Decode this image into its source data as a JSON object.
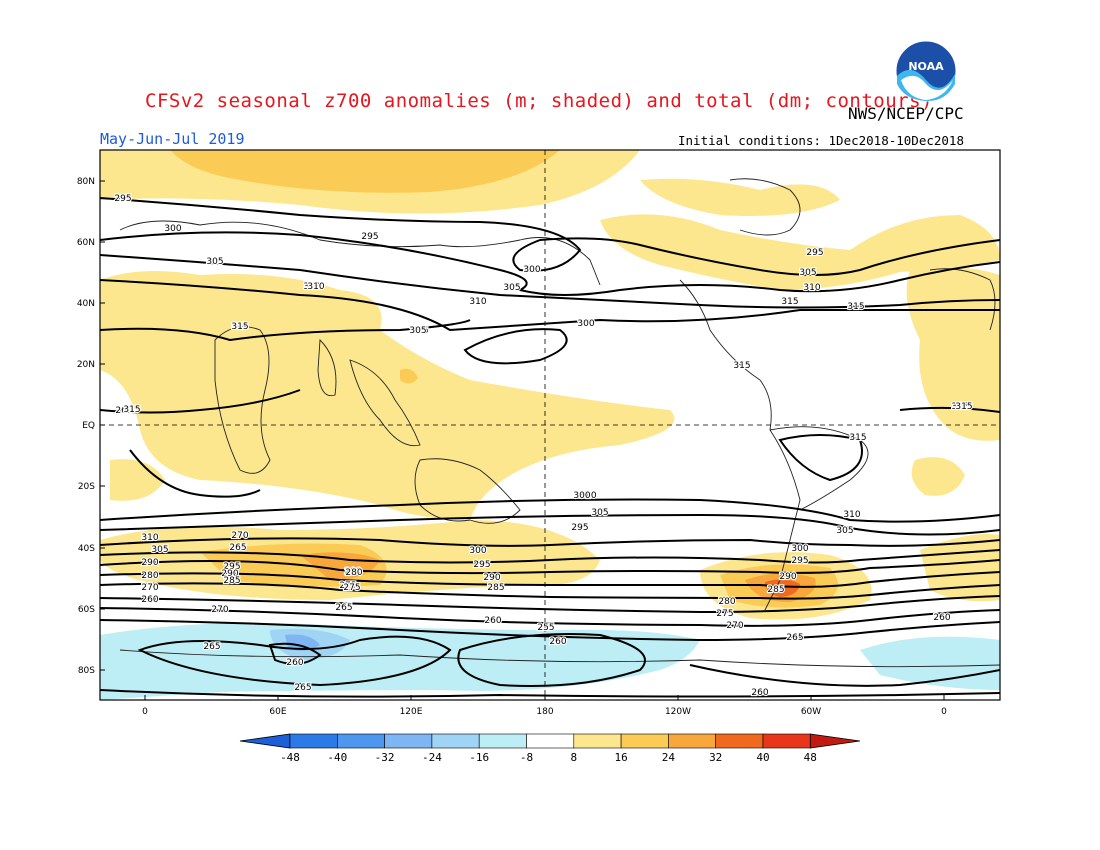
{
  "header": {
    "title": "CFSv2 seasonal z700 anomalies (m; shaded) and total (dm; contours)",
    "agency": "NWS/NCEP/CPC",
    "season": "May-Jun-Jul 2019",
    "initial_conditions": "Initial conditions: 1Dec2018-10Dec2018",
    "logo_text": "NOAA"
  },
  "map": {
    "lat_ticks": [
      "80N",
      "60N",
      "40N",
      "20N",
      "EQ",
      "20S",
      "40S",
      "60S",
      "80S"
    ],
    "lon_ticks": [
      "0",
      "60E",
      "120E",
      "180",
      "120W",
      "60W",
      "0"
    ],
    "colors": {
      "neg48": "#1c5fd6",
      "neg40": "#2c7ae6",
      "neg32": "#4e96ee",
      "neg24": "#7db6f2",
      "neg16": "#9fd4f5",
      "neg8": "#bdeef5",
      "zero": "#ffffff",
      "pos8": "#fde78e",
      "pos16": "#fbcc55",
      "pos24": "#f7a73b",
      "pos32": "#ef6a1f",
      "pos40": "#e8361a",
      "pos48": "#c11a10"
    }
  },
  "contour_labels": [
    "295",
    "300",
    "305",
    "310",
    "315",
    "295",
    "300",
    "305",
    "310",
    "315",
    "300",
    "295",
    "305",
    "310",
    "315",
    "315",
    "315",
    "315",
    "310",
    "305",
    "300",
    "295",
    "290",
    "285",
    "280",
    "275",
    "270",
    "265",
    "260",
    "255",
    "260",
    "265",
    "260",
    "265",
    "290",
    "295",
    "285",
    "280",
    "275",
    "270",
    "265",
    "260",
    "310",
    "305",
    "300",
    "295",
    "290",
    "285",
    "280",
    "275",
    "270",
    "265",
    "260",
    "260",
    "315",
    "295",
    "300",
    "305",
    "310",
    "315",
    "315",
    "315",
    "310",
    "305",
    "290",
    "280",
    "270",
    "260"
  ],
  "colorbar": {
    "labels": [
      "-48",
      "-40",
      "-32",
      "-24",
      "-16",
      "-8",
      "8",
      "16",
      "24",
      "32",
      "40",
      "48"
    ]
  }
}
